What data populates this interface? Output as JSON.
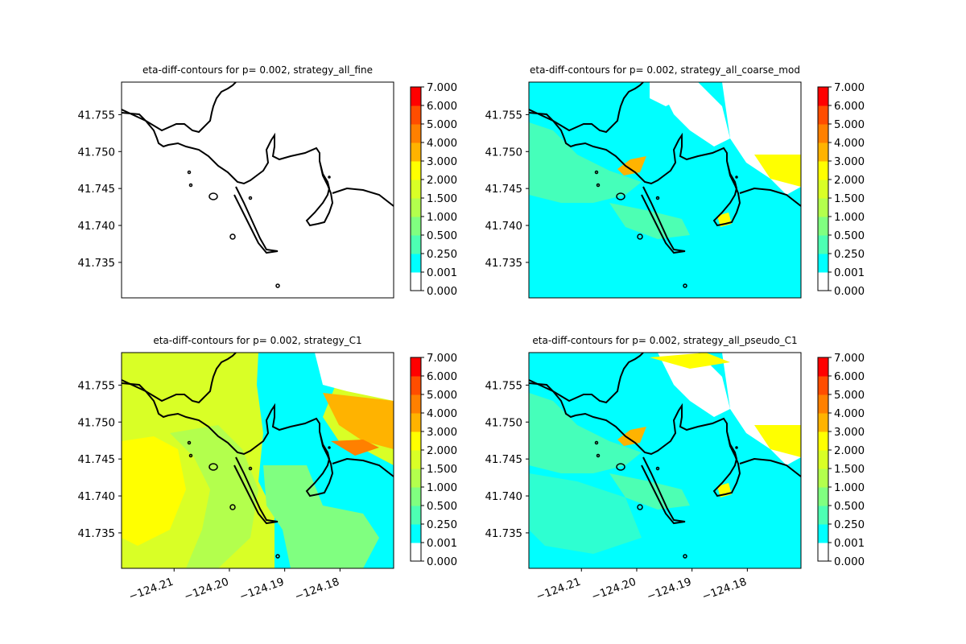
{
  "chart_data": [
    {
      "type": "heatmap",
      "title": "eta-diff-contours for p= 0.002, strategy_all_fine",
      "xlim": [
        -124.2195,
        -124.1703
      ],
      "ylim": [
        41.7302,
        41.7594
      ],
      "xticks": [],
      "yticks": [
        {
          "value": 41.735,
          "label": "41.735"
        },
        {
          "value": 41.74,
          "label": "41.740"
        },
        {
          "value": 41.745,
          "label": "41.745"
        },
        {
          "value": 41.75,
          "label": "41.750"
        },
        {
          "value": 41.755,
          "label": "41.755"
        }
      ],
      "fill": "none",
      "colorbar_ticks": [
        "0.000",
        "0.001",
        "0.250",
        "0.500",
        "1.000",
        "1.500",
        "2.000",
        "3.000",
        "4.000",
        "5.000",
        "6.000",
        "7.000"
      ]
    },
    {
      "type": "heatmap",
      "title": "eta-diff-contours for p= 0.002, strategy_all_coarse_mod",
      "xlim": [
        -124.2195,
        -124.1703
      ],
      "ylim": [
        41.7302,
        41.7594
      ],
      "xticks": [],
      "yticks": [
        {
          "value": 41.735,
          "label": "41.735"
        },
        {
          "value": 41.74,
          "label": "41.740"
        },
        {
          "value": 41.745,
          "label": "41.745"
        },
        {
          "value": 41.75,
          "label": "41.750"
        },
        {
          "value": 41.755,
          "label": "41.755"
        }
      ],
      "fill": "coarse",
      "colorbar_ticks": [
        "0.000",
        "0.001",
        "0.250",
        "0.500",
        "1.000",
        "1.500",
        "2.000",
        "3.000",
        "4.000",
        "5.000",
        "6.000",
        "7.000"
      ]
    },
    {
      "type": "heatmap",
      "title": "eta-diff-contours for p= 0.002, strategy_C1",
      "xlim": [
        -124.2195,
        -124.1703
      ],
      "ylim": [
        41.7302,
        41.7594
      ],
      "xticks": [
        {
          "value": -124.21,
          "label": "−124.21"
        },
        {
          "value": -124.2,
          "label": "−124.20"
        },
        {
          "value": -124.19,
          "label": "−124.19"
        },
        {
          "value": -124.18,
          "label": "−124.18"
        }
      ],
      "yticks": [
        {
          "value": 41.735,
          "label": "41.735"
        },
        {
          "value": 41.74,
          "label": "41.740"
        },
        {
          "value": 41.745,
          "label": "41.745"
        },
        {
          "value": 41.75,
          "label": "41.750"
        },
        {
          "value": 41.755,
          "label": "41.755"
        }
      ],
      "fill": "c1",
      "colorbar_ticks": [
        "0.000",
        "0.001",
        "0.250",
        "0.500",
        "1.000",
        "1.500",
        "2.000",
        "3.000",
        "4.000",
        "5.000",
        "6.000",
        "7.000"
      ]
    },
    {
      "type": "heatmap",
      "title": "eta-diff-contours for p= 0.002, strategy_all_pseudo_C1",
      "xlim": [
        -124.2195,
        -124.1703
      ],
      "ylim": [
        41.7302,
        41.7594
      ],
      "xticks": [
        {
          "value": -124.21,
          "label": "−124.21"
        },
        {
          "value": -124.2,
          "label": "−124.20"
        },
        {
          "value": -124.19,
          "label": "−124.19"
        },
        {
          "value": -124.18,
          "label": "−124.18"
        }
      ],
      "yticks": [
        {
          "value": 41.735,
          "label": "41.735"
        },
        {
          "value": 41.74,
          "label": "41.740"
        },
        {
          "value": 41.745,
          "label": "41.745"
        },
        {
          "value": 41.75,
          "label": "41.750"
        },
        {
          "value": 41.755,
          "label": "41.755"
        }
      ],
      "fill": "pseudo",
      "colorbar_ticks": [
        "0.000",
        "0.001",
        "0.250",
        "0.500",
        "1.000",
        "1.500",
        "2.000",
        "3.000",
        "4.000",
        "5.000",
        "6.000",
        "7.000"
      ]
    }
  ],
  "colorbar_colors": [
    "#ffffff",
    "#00ffff",
    "#4dffb3",
    "#80ff80",
    "#b3ff4d",
    "#d9ff26",
    "#ffff00",
    "#ffb300",
    "#ff8000",
    "#ff4d00",
    "#ff0000"
  ],
  "coastline_color": "#000000"
}
